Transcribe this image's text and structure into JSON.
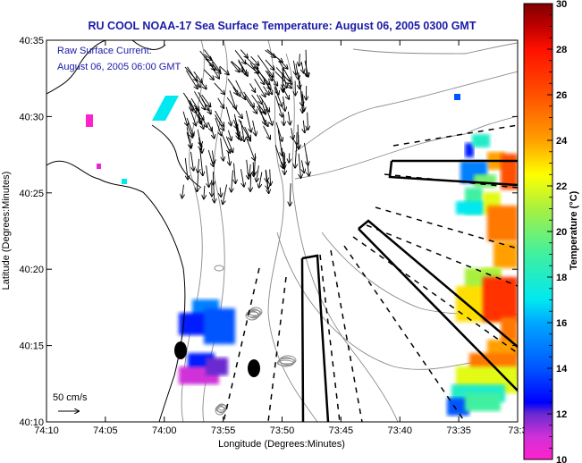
{
  "chart_data": {
    "type": "heatmap",
    "title": "RU COOL  NOAA-17  Sea Surface Temperature:  August 06, 2005 0300 GMT",
    "annotations": [
      "Raw Surface Current:",
      "August 06, 2005 06:00 GMT"
    ],
    "scale_arrow_label": "50 cm/s",
    "xlabel": "Longitude (Degrees:Minutes)",
    "ylabel": "Latitude (Degrees:Minutes)",
    "xticks": [
      "74:10",
      "74:05",
      "74:00",
      "73:55",
      "73:50",
      "73:45",
      "73:40",
      "73:35",
      "73:3"
    ],
    "yticks": [
      "40:10",
      "40:15",
      "40:20",
      "40:25",
      "40:30",
      "40:35"
    ],
    "xlim_minutes_west": [
      10,
      -30
    ],
    "ylim_minutes_north": [
      10,
      35
    ],
    "colorbar": {
      "label": "Temperature (°C)",
      "min": 10,
      "max": 30,
      "ticks": [
        "10",
        "12",
        "14",
        "16",
        "18",
        "20",
        "22",
        "24",
        "26",
        "28",
        "30"
      ],
      "stops": [
        {
          "value": 10,
          "color": "#ff22cc"
        },
        {
          "value": 11,
          "color": "#d030d8"
        },
        {
          "value": 12,
          "color": "#6a2ad0"
        },
        {
          "value": 12.5,
          "color": "#0000ff"
        },
        {
          "value": 14,
          "color": "#0055ff"
        },
        {
          "value": 16,
          "color": "#00a8ff"
        },
        {
          "value": 17,
          "color": "#00e8f0"
        },
        {
          "value": 19,
          "color": "#40f0a0"
        },
        {
          "value": 21,
          "color": "#a8f040"
        },
        {
          "value": 22.5,
          "color": "#ffff00"
        },
        {
          "value": 24,
          "color": "#ffa000"
        },
        {
          "value": 26,
          "color": "#ff5000"
        },
        {
          "value": 28,
          "color": "#ff1000"
        },
        {
          "value": 29,
          "color": "#c00000"
        },
        {
          "value": 30,
          "color": "#800000"
        }
      ]
    },
    "sst_patches": [
      {
        "region": "east-upper",
        "approx_lat": "40:24-40:28",
        "approx_lon": "73:33-73:36",
        "temp_range_c": [
          14,
          25
        ]
      },
      {
        "region": "east-middle",
        "approx_lat": "40:17-40:22",
        "approx_lon": "73:30-73:35",
        "temp_range_c": [
          18,
          28
        ]
      },
      {
        "region": "east-lower",
        "approx_lat": "40:10-40:15",
        "approx_lon": "73:30-73:37",
        "temp_range_c": [
          14,
          26
        ]
      },
      {
        "region": "west-nearshore",
        "approx_lat": "40:11-40:17",
        "approx_lon": "73:56-74:00",
        "temp_range_c": [
          10,
          16
        ]
      },
      {
        "region": "northwest-specks",
        "approx_lat": "40:26-40:31",
        "approx_lon": "74:00-74:06",
        "temp_range_c": [
          10,
          17
        ]
      }
    ],
    "grid": false,
    "legend": "right"
  },
  "markers": {
    "filled_dots": 2,
    "boxes": 3,
    "dashed_radials": 10
  }
}
